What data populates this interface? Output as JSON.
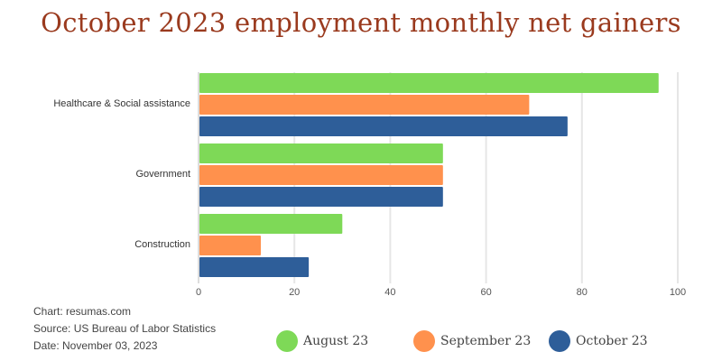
{
  "title": "October 2023 employment monthly net gainers",
  "footer": {
    "chart_credit": "Chart: resumas.com",
    "source": "Source: US Bureau of Labor Statistics",
    "date": "Date: November 03, 2023"
  },
  "chart_data": {
    "type": "bar",
    "orientation": "horizontal",
    "title": "October 2023 employment monthly net gainers",
    "categories": [
      "Healthcare & Social assistance",
      "Government",
      "Construction"
    ],
    "series": [
      {
        "name": "August 23",
        "color": "#7ed957",
        "values": [
          96,
          51,
          30
        ]
      },
      {
        "name": "September 23",
        "color": "#ff914d",
        "values": [
          69,
          51,
          13
        ]
      },
      {
        "name": "October 23",
        "color": "#2e5e99",
        "values": [
          77,
          51,
          23
        ]
      }
    ],
    "xlim": [
      0,
      100
    ],
    "xticks": [
      "0",
      "20",
      "40",
      "60",
      "80",
      "100"
    ],
    "grid": true,
    "legend": "bottom"
  }
}
